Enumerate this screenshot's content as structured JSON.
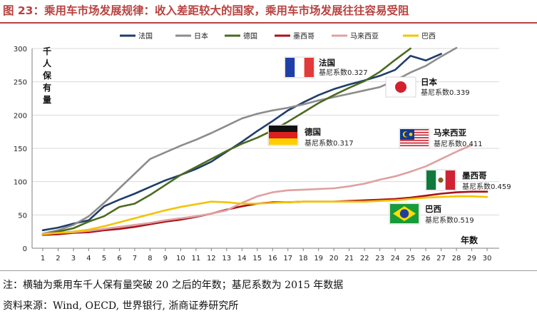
{
  "header": {
    "title": "图 23：乘用车市场发展规律：收入差距较大的国家，乘用车市场发展往往容易受阻"
  },
  "footer": {
    "note": "注：横轴为乘用车千人保有量突破 20 之后的年数；基尼系数为 2015 年数据",
    "source": "资料来源：Wind, OECD, 世界银行, 浙商证券研究所"
  },
  "chart_data": {
    "type": "line",
    "title": "",
    "ylabel": "千人保有量",
    "xlabel": "年数",
    "xlim": [
      1,
      30
    ],
    "ylim": [
      0,
      300
    ],
    "yticks": [
      0,
      50,
      100,
      150,
      200,
      250,
      300
    ],
    "x": [
      1,
      2,
      3,
      4,
      5,
      6,
      7,
      8,
      9,
      10,
      11,
      12,
      13,
      14,
      15,
      16,
      17,
      18,
      19,
      20,
      21,
      22,
      23,
      24,
      25,
      26,
      27,
      28,
      29,
      30
    ],
    "series": [
      {
        "name": "法国",
        "color": "#1f3d6b",
        "values": [
          27,
          31,
          37,
          42,
          63,
          73,
          82,
          92,
          102,
          110,
          119,
          130,
          145,
          160,
          176,
          191,
          207,
          219,
          230,
          239,
          246,
          252,
          259,
          268,
          289,
          282,
          292,
          null,
          null,
          null
        ]
      },
      {
        "name": "日本",
        "color": "#8c8c8c",
        "values": [
          22,
          27,
          35,
          48,
          68,
          90,
          112,
          134,
          144,
          154,
          163,
          173,
          184,
          195,
          202,
          207,
          211,
          216,
          222,
          227,
          232,
          237,
          242,
          252,
          264,
          274,
          288,
          301,
          null,
          null
        ]
      },
      {
        "name": "德国",
        "color": "#4b6b1f",
        "values": [
          21,
          25,
          30,
          40,
          48,
          62,
          67,
          80,
          95,
          110,
          122,
          134,
          146,
          157,
          166,
          177,
          190,
          204,
          218,
          230,
          241,
          251,
          265,
          283,
          300,
          null,
          null,
          null,
          null,
          null
        ]
      },
      {
        "name": "墨西哥",
        "color": "#a8121a",
        "values": [
          20,
          21,
          23,
          24,
          27,
          29,
          32,
          36,
          40,
          43,
          47,
          52,
          58,
          63,
          67,
          69,
          69,
          70,
          70,
          70,
          71,
          72,
          73,
          74,
          76,
          79,
          82,
          84,
          85,
          85
        ]
      },
      {
        "name": "马来西亚",
        "color": "#e0a0a0",
        "values": [
          22,
          23,
          24,
          26,
          29,
          32,
          35,
          38,
          42,
          45,
          48,
          52,
          57,
          68,
          78,
          84,
          87,
          88,
          89,
          90,
          93,
          97,
          103,
          108,
          115,
          123,
          134,
          145,
          155,
          null
        ]
      },
      {
        "name": "巴西",
        "color": "#f2c400",
        "values": [
          21,
          23,
          25,
          28,
          33,
          39,
          45,
          51,
          57,
          62,
          66,
          70,
          69,
          67,
          67,
          68,
          69,
          70,
          70,
          70,
          70,
          70,
          71,
          72,
          74,
          76,
          77,
          78,
          78,
          77
        ]
      }
    ],
    "legend_position": "top",
    "annotations": [
      {
        "country": "法国",
        "gini_label": "基尼系数0.327"
      },
      {
        "country": "日本",
        "gini_label": "基尼系数0.339"
      },
      {
        "country": "德国",
        "gini_label": "基尼系数0.317"
      },
      {
        "country": "马来西亚",
        "gini_label": "基尼系数0.411"
      },
      {
        "country": "墨西哥",
        "gini_label": "基尼系数0.459"
      },
      {
        "country": "巴西",
        "gini_label": "基尼系数0.519"
      }
    ]
  }
}
